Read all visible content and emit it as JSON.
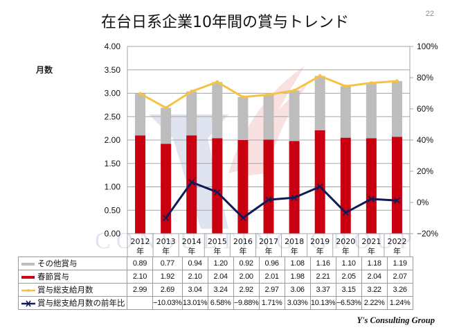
{
  "page": {
    "title": "在台日系企業10年間の賞与トレンド",
    "page_number": "22",
    "y_unit_label": "月数",
    "brand": "Y's Consulting Group",
    "watermark_text": "CONSULTING GROUP"
  },
  "colors": {
    "other_bonus": "#bdbdbd",
    "spring_bonus": "#c8000f",
    "total_months": "#f6c244",
    "yoy": "#0f1a57",
    "grid": "#a6a6a6"
  },
  "chart_data": {
    "type": "bar",
    "stacked": true,
    "title": "在台日系企業10年間の賞与トレンド",
    "ylabel": "月数",
    "categories": [
      "2012\n年",
      "2013\n年",
      "2014\n年",
      "2015\n年",
      "2016\n年",
      "2017\n年",
      "2018\n年",
      "2019\n年",
      "2020\n年",
      "2021\n年",
      "2022\n年"
    ],
    "category_years": [
      "2012",
      "2013",
      "2014",
      "2015",
      "2016",
      "2017",
      "2018",
      "2019",
      "2020",
      "2021",
      "2022"
    ],
    "category_suffix": "年",
    "ylim": [
      0,
      4
    ],
    "y_ticks": [
      "0.00",
      "0.50",
      "1.00",
      "1.50",
      "2.00",
      "2.50",
      "3.00",
      "3.50",
      "4.00"
    ],
    "y2lim": [
      -20,
      100
    ],
    "y2_ticks": [
      "-20%",
      "0%",
      "20%",
      "40%",
      "60%",
      "80%",
      "100%"
    ],
    "grid": true,
    "legend_placement": "table-below",
    "series": [
      {
        "name": "その他賞与",
        "type": "bar",
        "axis": "left",
        "values": [
          0.89,
          0.77,
          0.94,
          1.2,
          0.92,
          0.96,
          1.08,
          1.16,
          1.1,
          1.18,
          1.19
        ],
        "labels": [
          "0.89",
          "0.77",
          "0.94",
          "1.20",
          "0.92",
          "0.96",
          "1.08",
          "1.16",
          "1.10",
          "1.18",
          "1.19"
        ]
      },
      {
        "name": "春節賞与",
        "type": "bar",
        "axis": "left",
        "values": [
          2.1,
          1.92,
          2.1,
          2.04,
          2.0,
          2.01,
          1.98,
          2.21,
          2.05,
          2.04,
          2.07
        ],
        "labels": [
          "2.10",
          "1.92",
          "2.10",
          "2.04",
          "2.00",
          "2.01",
          "1.98",
          "2.21",
          "2.05",
          "2.04",
          "2.07"
        ]
      },
      {
        "name": "賞与総支給月数",
        "type": "line",
        "axis": "left",
        "values": [
          2.99,
          2.69,
          3.04,
          3.24,
          2.92,
          2.97,
          3.06,
          3.37,
          3.15,
          3.22,
          3.26
        ],
        "labels": [
          "2.99",
          "2.69",
          "3.04",
          "3.24",
          "2.92",
          "2.97",
          "3.06",
          "3.37",
          "3.15",
          "3.22",
          "3.26"
        ]
      },
      {
        "name": "賞与総支給月数の前年比",
        "type": "line",
        "axis": "right",
        "values": [
          null,
          -10.03,
          13.01,
          6.58,
          -9.88,
          1.71,
          3.03,
          10.13,
          -6.53,
          2.22,
          1.24
        ],
        "labels": [
          "",
          "−10.03%",
          "13.01%",
          "6.58%",
          "−9.88%",
          "1.71%",
          "3.03%",
          "10.13%",
          "−6.53%",
          "2.22%",
          "1.24%"
        ]
      }
    ]
  }
}
